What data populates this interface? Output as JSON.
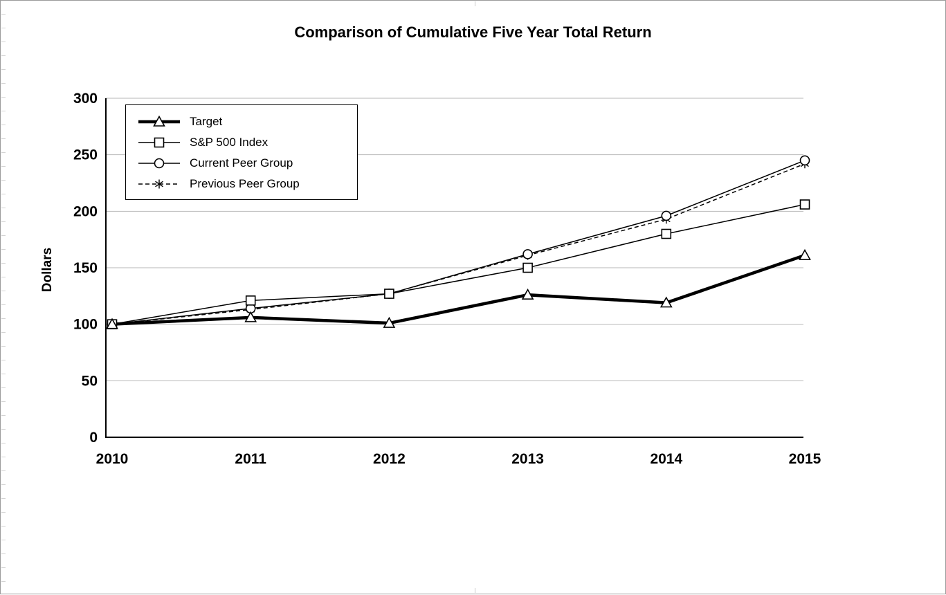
{
  "chart_data": {
    "type": "line",
    "title": "Comparison of Cumulative Five Year Total Return",
    "xlabel": "",
    "ylabel": "Dollars",
    "categories": [
      "2010",
      "2011",
      "2012",
      "2013",
      "2014",
      "2015"
    ],
    "ylim": [
      0,
      300
    ],
    "ytick_step": 50,
    "grid": true,
    "legend_position": "top-left-inside",
    "series": [
      {
        "name": "Target",
        "values": [
          100,
          106,
          101,
          126,
          119,
          161
        ],
        "marker": "triangle",
        "line_width": 4.5,
        "dash": null
      },
      {
        "name": "S&P 500 Index",
        "values": [
          100,
          121,
          127,
          150,
          180,
          206
        ],
        "marker": "square",
        "line_width": 1.5,
        "dash": null
      },
      {
        "name": "Current Peer Group",
        "values": [
          100,
          114,
          127,
          162,
          196,
          245
        ],
        "marker": "circle",
        "line_width": 1.5,
        "dash": null
      },
      {
        "name": "Previous Peer Group",
        "values": [
          100,
          113,
          127,
          161,
          193,
          242
        ],
        "marker": "star",
        "line_width": 1.5,
        "dash": "6,4"
      }
    ],
    "colors": {
      "line": "#000000",
      "grid": "#b7b7b7",
      "marker_fill": "#ffffff",
      "axis": "#000000"
    }
  }
}
